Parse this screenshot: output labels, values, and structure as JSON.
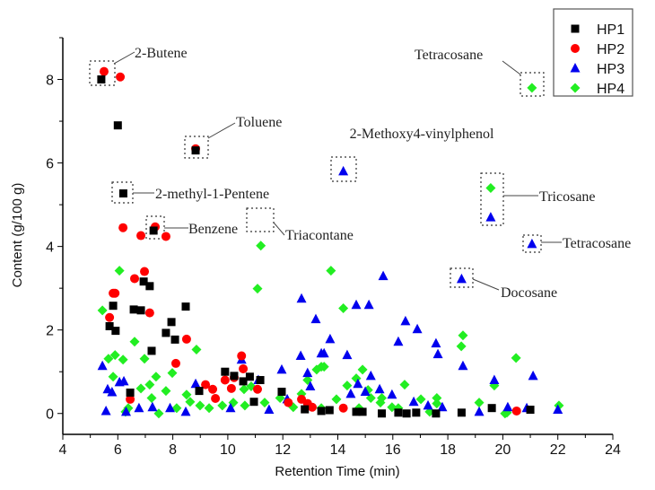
{
  "chart_data": {
    "type": "scatter",
    "xlabel": "Retention Time (min)",
    "ylabel": "Content (g/100 g)",
    "xlim": [
      4,
      24
    ],
    "ylim": [
      -0.5,
      9
    ],
    "xticks": [
      4,
      6,
      8,
      10,
      12,
      14,
      16,
      18,
      20,
      22,
      24
    ],
    "yticks": [
      0,
      2,
      4,
      6,
      8
    ],
    "grid": false,
    "legend_position": "top-right",
    "series": [
      {
        "name": "HP1",
        "marker": "square",
        "color": "#000000",
        "points": [
          [
            5.4,
            8.0
          ],
          [
            6.0,
            6.9
          ],
          [
            6.2,
            5.27
          ],
          [
            7.3,
            4.38
          ],
          [
            8.83,
            6.3
          ],
          [
            5.83,
            2.58
          ],
          [
            5.7,
            2.09
          ],
          [
            5.92,
            1.98
          ],
          [
            6.58,
            2.49
          ],
          [
            6.84,
            2.47
          ],
          [
            6.94,
            3.16
          ],
          [
            7.16,
            3.05
          ],
          [
            7.23,
            1.5
          ],
          [
            7.75,
            1.93
          ],
          [
            7.95,
            2.19
          ],
          [
            8.08,
            1.77
          ],
          [
            8.47,
            2.56
          ],
          [
            6.45,
            0.5
          ],
          [
            9.9,
            1.0
          ],
          [
            10.23,
            0.9
          ],
          [
            10.8,
            0.88
          ],
          [
            10.56,
            0.77
          ],
          [
            11.18,
            0.8
          ],
          [
            8.96,
            0.54
          ],
          [
            11.96,
            0.52
          ],
          [
            10.95,
            0.28
          ],
          [
            12.8,
            0.1
          ],
          [
            13.4,
            0.06
          ],
          [
            13.7,
            0.08
          ],
          [
            14.67,
            0.04
          ],
          [
            14.9,
            0.04
          ],
          [
            15.6,
            0.0
          ],
          [
            16.2,
            0.02
          ],
          [
            16.5,
            0.0
          ],
          [
            16.85,
            0.02
          ],
          [
            17.57,
            0.0
          ],
          [
            18.5,
            0.02
          ],
          [
            19.6,
            0.13
          ],
          [
            21.0,
            0.09
          ]
        ]
      },
      {
        "name": "HP2",
        "marker": "circle",
        "color": "#ff0000",
        "points": [
          [
            5.5,
            8.19
          ],
          [
            6.09,
            8.06
          ],
          [
            8.83,
            6.34
          ],
          [
            6.19,
            4.45
          ],
          [
            6.84,
            4.26
          ],
          [
            7.36,
            4.47
          ],
          [
            7.75,
            4.24
          ],
          [
            6.97,
            3.4
          ],
          [
            6.61,
            3.23
          ],
          [
            5.83,
            2.88
          ],
          [
            5.9,
            2.88
          ],
          [
            5.7,
            2.3
          ],
          [
            7.16,
            2.41
          ],
          [
            8.5,
            1.78
          ],
          [
            8.11,
            1.2
          ],
          [
            10.5,
            1.38
          ],
          [
            10.56,
            1.07
          ],
          [
            9.9,
            0.8
          ],
          [
            10.23,
            0.86
          ],
          [
            10.13,
            0.6
          ],
          [
            9.19,
            0.69
          ],
          [
            9.45,
            0.58
          ],
          [
            9.55,
            0.36
          ],
          [
            11.08,
            0.58
          ],
          [
            6.45,
            0.34
          ],
          [
            12.68,
            0.34
          ],
          [
            12.9,
            0.24
          ],
          [
            13.07,
            0.15
          ],
          [
            12.2,
            0.26
          ],
          [
            14.2,
            0.13
          ],
          [
            20.5,
            0.06
          ]
        ]
      },
      {
        "name": "HP3",
        "marker": "triangle",
        "color": "#0000ee",
        "points": [
          [
            14.2,
            5.8
          ],
          [
            19.56,
            4.7
          ],
          [
            21.06,
            4.06
          ],
          [
            18.5,
            3.22
          ],
          [
            5.44,
            1.14
          ],
          [
            5.63,
            0.58
          ],
          [
            5.79,
            0.51
          ],
          [
            5.57,
            0.06
          ],
          [
            6.06,
            0.75
          ],
          [
            6.22,
            0.77
          ],
          [
            8.83,
            0.71
          ],
          [
            10.5,
            1.29
          ],
          [
            11.11,
            0.8
          ],
          [
            11.96,
            1.05
          ],
          [
            12.68,
            2.75
          ],
          [
            13.2,
            2.26
          ],
          [
            12.65,
            1.38
          ],
          [
            12.9,
            0.97
          ],
          [
            13.0,
            0.65
          ],
          [
            13.4,
            1.44
          ],
          [
            15.65,
            3.29
          ],
          [
            13.72,
            1.78
          ],
          [
            13.5,
            1.44
          ],
          [
            14.67,
            2.6
          ],
          [
            15.13,
            2.6
          ],
          [
            16.46,
            2.21
          ],
          [
            16.89,
            2.02
          ],
          [
            16.2,
            1.72
          ],
          [
            17.57,
            1.68
          ],
          [
            17.64,
            1.42
          ],
          [
            18.55,
            1.14
          ],
          [
            19.69,
            0.8
          ],
          [
            21.1,
            0.9
          ],
          [
            14.34,
            1.4
          ],
          [
            15.2,
            0.9
          ],
          [
            14.73,
            0.71
          ],
          [
            15.52,
            0.58
          ],
          [
            15.97,
            0.45
          ],
          [
            14.47,
            0.47
          ],
          [
            15.0,
            0.52
          ],
          [
            16.76,
            0.28
          ],
          [
            17.28,
            0.19
          ],
          [
            17.8,
            0.15
          ],
          [
            19.14,
            0.04
          ],
          [
            20.18,
            0.15
          ],
          [
            20.87,
            0.13
          ],
          [
            22.0,
            0.09
          ],
          [
            6.3,
            0.04
          ],
          [
            6.77,
            0.13
          ],
          [
            7.26,
            0.15
          ],
          [
            7.9,
            0.13
          ],
          [
            8.47,
            0.04
          ],
          [
            10.1,
            0.13
          ],
          [
            11.5,
            0.09
          ],
          [
            12.16,
            0.34
          ]
        ]
      },
      {
        "name": "HP4",
        "marker": "diamond",
        "color": "#22ee22",
        "points": [
          [
            21.06,
            7.8
          ],
          [
            19.56,
            5.4
          ],
          [
            11.2,
            4.02
          ],
          [
            6.06,
            3.42
          ],
          [
            5.44,
            2.47
          ],
          [
            5.66,
            1.31
          ],
          [
            5.9,
            1.4
          ],
          [
            6.19,
            1.29
          ],
          [
            6.61,
            1.72
          ],
          [
            6.97,
            1.31
          ],
          [
            5.83,
            0.88
          ],
          [
            7.39,
            0.88
          ],
          [
            7.16,
            0.69
          ],
          [
            6.84,
            0.6
          ],
          [
            7.98,
            0.97
          ],
          [
            8.86,
            1.53
          ],
          [
            11.08,
            2.99
          ],
          [
            7.75,
            0.54
          ],
          [
            7.23,
            0.37
          ],
          [
            6.38,
            0.13
          ],
          [
            6.28,
            0.04
          ],
          [
            7.49,
            0.0
          ],
          [
            8.14,
            0.13
          ],
          [
            8.5,
            0.45
          ],
          [
            8.63,
            0.28
          ],
          [
            8.99,
            0.19
          ],
          [
            9.32,
            0.13
          ],
          [
            9.8,
            0.19
          ],
          [
            10.2,
            0.26
          ],
          [
            10.62,
            0.19
          ],
          [
            10.59,
            0.58
          ],
          [
            10.85,
            0.65
          ],
          [
            11.34,
            0.26
          ],
          [
            11.9,
            0.37
          ],
          [
            12.38,
            0.15
          ],
          [
            12.68,
            0.47
          ],
          [
            12.9,
            0.8
          ],
          [
            13.23,
            1.05
          ],
          [
            13.4,
            1.12
          ],
          [
            13.75,
            3.42
          ],
          [
            14.2,
            2.52
          ],
          [
            13.5,
            1.12
          ],
          [
            14.9,
            1.05
          ],
          [
            14.67,
            0.84
          ],
          [
            14.34,
            0.67
          ],
          [
            15.1,
            0.56
          ],
          [
            15.2,
            0.37
          ],
          [
            15.6,
            0.37
          ],
          [
            15.55,
            0.26
          ],
          [
            16.43,
            0.69
          ],
          [
            17.02,
            0.34
          ],
          [
            17.6,
            0.37
          ],
          [
            17.6,
            0.24
          ],
          [
            17.34,
            0.04
          ],
          [
            18.55,
            1.87
          ],
          [
            18.49,
            1.61
          ],
          [
            20.48,
            1.33
          ],
          [
            19.69,
            0.67
          ],
          [
            19.14,
            0.26
          ],
          [
            20.08,
            0.0
          ],
          [
            20.15,
            0.02
          ],
          [
            22.04,
            0.19
          ],
          [
            13.95,
            0.34
          ],
          [
            16.2,
            0.13
          ],
          [
            15.97,
            0.15
          ],
          [
            14.77,
            0.13
          ],
          [
            13.4,
            0.13
          ]
        ]
      }
    ],
    "annotations": [
      {
        "text": "2-Butene",
        "x": 5.45,
        "y": 8.1
      },
      {
        "text": "Toluene",
        "x": 8.83,
        "y": 6.34
      },
      {
        "text": "2-methyl-1-Pentene",
        "x": 6.2,
        "y": 5.27
      },
      {
        "text": "Benzene",
        "x": 7.33,
        "y": 4.45
      },
      {
        "text": "Triacontane",
        "x": 11.2,
        "y": 4.02
      },
      {
        "text": "2-Methoxy4-vinylphenol",
        "x": 14.2,
        "y": 5.8
      },
      {
        "text": "Tetracosane",
        "x": 21.06,
        "y": 7.8
      },
      {
        "text": "Tricosane",
        "x": 19.56,
        "y": 5.05
      },
      {
        "text": "Tetracosane",
        "x": 21.06,
        "y": 4.06
      },
      {
        "text": "Docosane",
        "x": 18.5,
        "y": 3.22
      }
    ]
  }
}
